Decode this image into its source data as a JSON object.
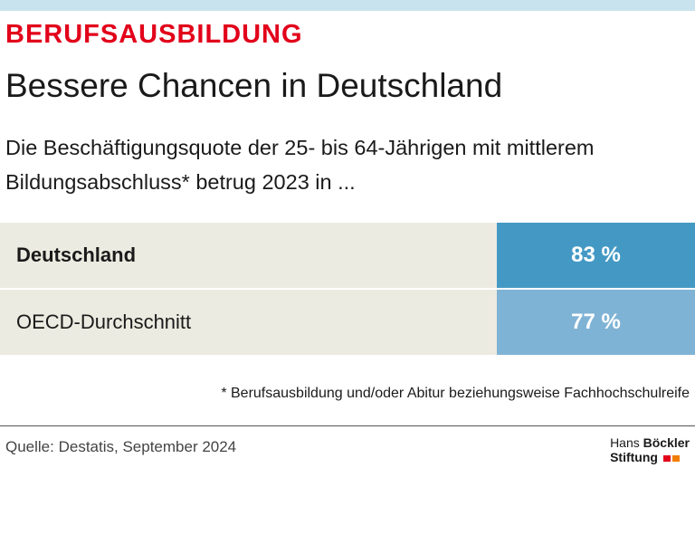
{
  "kicker": "BERUFSAUSBILDUNG",
  "title": "Bessere Chancen in Deutschland",
  "subtitle": "Die Beschäftigungsquote der 25- bis 64-Jährigen mit mittlerem Bildungsabschluss* betrug 2023 in ...",
  "table": {
    "rows": [
      [
        "Deutschland",
        "83 %"
      ],
      [
        "OECD-Durchschnitt",
        "77 %"
      ]
    ]
  },
  "footnote": "* Berufsausbildung und/oder Abitur beziehungsweise Fachhochschulreife",
  "source": "Quelle: Destatis, September 2024",
  "logo": {
    "name1": "Hans",
    "name2": "Böckler",
    "name3": "Stiftung"
  }
}
